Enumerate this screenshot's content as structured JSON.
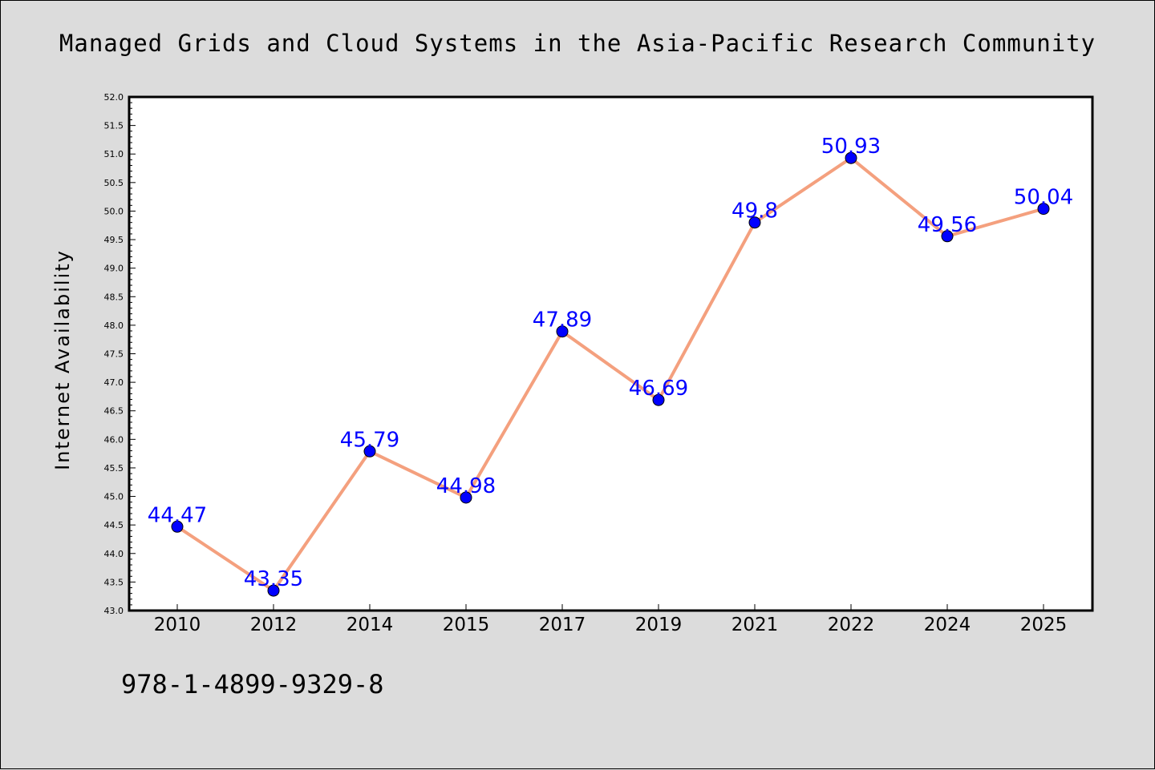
{
  "chart_data": {
    "type": "line",
    "title": "Managed Grids and Cloud Systems in the Asia-Pacific Research Community",
    "xlabel": "",
    "ylabel": "Internet Availability",
    "categories": [
      "2010",
      "2012",
      "2014",
      "2015",
      "2017",
      "2019",
      "2021",
      "2022",
      "2024",
      "2025"
    ],
    "values": [
      44.47,
      43.35,
      45.79,
      44.98,
      47.89,
      46.69,
      49.8,
      50.93,
      49.56,
      50.04
    ],
    "data_labels": [
      "44.47",
      "43.35",
      "45.79",
      "44.98",
      "47.89",
      "46.69",
      "49.8",
      "50.93",
      "49.56",
      "50.04"
    ],
    "ylim": [
      43.0,
      52.0
    ],
    "yticks": [
      "43.0",
      "43.5",
      "44.0",
      "44.5",
      "45.0",
      "45.5",
      "46.0",
      "46.5",
      "47.0",
      "47.5",
      "48.0",
      "48.5",
      "49.0",
      "49.5",
      "50.0",
      "50.5",
      "51.0",
      "51.5",
      "52.0"
    ],
    "grid": false,
    "colors": {
      "line": "#f4a07e",
      "marker": "#0000ff",
      "label": "#0000ff",
      "background": "#dcdcdc",
      "plot_background": "#ffffff"
    }
  },
  "footer": {
    "isbn": "978-1-4899-9329-8"
  }
}
